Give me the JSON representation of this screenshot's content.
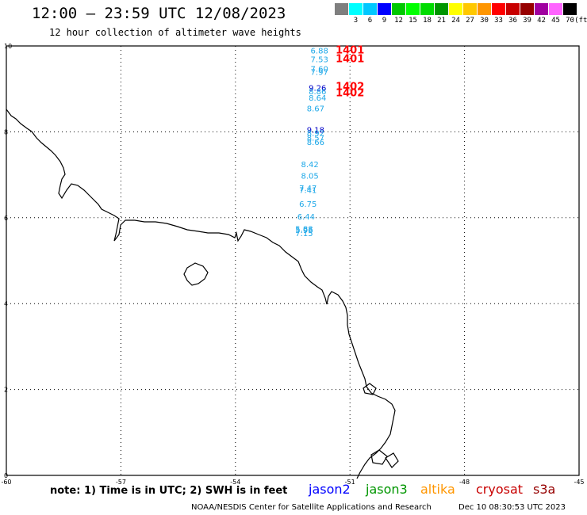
{
  "header": {
    "title": "12:00 — 23:59 UTC 12/08/2023",
    "subtitle": "12 hour collection of altimeter wave heights"
  },
  "color_scale": {
    "unit": "(ft)",
    "swatches": [
      {
        "label": "",
        "color": "#7f7f7f"
      },
      {
        "label": "3",
        "color": "#00ffff"
      },
      {
        "label": "6",
        "color": "#00c8ff"
      },
      {
        "label": "9",
        "color": "#0000ff"
      },
      {
        "label": "12",
        "color": "#00c800"
      },
      {
        "label": "15",
        "color": "#00ff00"
      },
      {
        "label": "18",
        "color": "#00dc00"
      },
      {
        "label": "21",
        "color": "#009600"
      },
      {
        "label": "24",
        "color": "#ffff00"
      },
      {
        "label": "27",
        "color": "#ffc800"
      },
      {
        "label": "30",
        "color": "#ff9600"
      },
      {
        "label": "33",
        "color": "#ff0000"
      },
      {
        "label": "36",
        "color": "#c80000"
      },
      {
        "label": "39",
        "color": "#960000"
      },
      {
        "label": "42",
        "color": "#a000a0"
      },
      {
        "label": "45",
        "color": "#ff64ff"
      },
      {
        "label": "70",
        "color": "#000000"
      }
    ]
  },
  "map": {
    "x_ticks": [
      "-60",
      "-57",
      "-54",
      "-51",
      "-48",
      "-45"
    ],
    "y_ticks": [
      "10",
      "8",
      "6",
      "4",
      "2",
      "0"
    ],
    "x_range": [
      -60,
      -45
    ],
    "y_range": [
      0,
      10
    ],
    "observations": [
      {
        "text": "6.88",
        "lon": -51.8,
        "lat": 9.9,
        "color": "#1ea8e8"
      },
      {
        "text": "7.53",
        "lon": -51.8,
        "lat": 9.7,
        "color": "#1ea8e8"
      },
      {
        "text": "7.60",
        "lon": -51.8,
        "lat": 9.47,
        "color": "#1ea8e8"
      },
      {
        "text": "7.97",
        "lon": -51.8,
        "lat": 9.4,
        "color": "#1ea8e8"
      },
      {
        "text": "9.26",
        "lon": -51.85,
        "lat": 9.03,
        "color": "#0000c8"
      },
      {
        "text": "8.86",
        "lon": -51.85,
        "lat": 8.95,
        "color": "#1ea8e8"
      },
      {
        "text": "8.64",
        "lon": -51.85,
        "lat": 8.8,
        "color": "#1ea8e8"
      },
      {
        "text": "8.67",
        "lon": -51.9,
        "lat": 8.55,
        "color": "#1ea8e8"
      },
      {
        "text": "9.18",
        "lon": -51.9,
        "lat": 8.05,
        "color": "#0000c8"
      },
      {
        "text": "8.92",
        "lon": -51.9,
        "lat": 7.98,
        "color": "#1ea8e8"
      },
      {
        "text": "8.57",
        "lon": -51.9,
        "lat": 7.87,
        "color": "#1ea8e8"
      },
      {
        "text": "8.66",
        "lon": -51.9,
        "lat": 7.77,
        "color": "#1ea8e8"
      },
      {
        "text": "8.42",
        "lon": -52.05,
        "lat": 7.25,
        "color": "#1ea8e8"
      },
      {
        "text": "8.05",
        "lon": -52.05,
        "lat": 6.98,
        "color": "#1ea8e8"
      },
      {
        "text": "7.47",
        "lon": -52.1,
        "lat": 6.7,
        "color": "#1ea8e8"
      },
      {
        "text": "7.41",
        "lon": -52.1,
        "lat": 6.65,
        "color": "#1ea8e8"
      },
      {
        "text": "6.75",
        "lon": -52.1,
        "lat": 6.33,
        "color": "#1ea8e8"
      },
      {
        "text": "6.44",
        "lon": -52.15,
        "lat": 6.03,
        "color": "#1ea8e8"
      },
      {
        "text": "5.88",
        "lon": -52.2,
        "lat": 5.75,
        "color": "#1ea8e8"
      },
      {
        "text": "5.96",
        "lon": -52.2,
        "lat": 5.72,
        "color": "#1ea8e8"
      },
      {
        "text": "7.15",
        "lon": -52.2,
        "lat": 5.65,
        "color": "#1ea8e8"
      },
      {
        "text": "1401",
        "lon": -51.0,
        "lat": 9.9,
        "color": "#ff0000"
      },
      {
        "text": "1401",
        "lon": -51.0,
        "lat": 9.7,
        "color": "#ff0000"
      },
      {
        "text": "1402",
        "lon": -51.0,
        "lat": 9.05,
        "color": "#ff0000"
      },
      {
        "text": "1402",
        "lon": -51.0,
        "lat": 8.9,
        "color": "#ff0000"
      }
    ]
  },
  "footer": {
    "note": "note: 1) Time is in UTC; 2) SWH is in feet",
    "satellites": [
      {
        "name": "jason2",
        "color": "#0000ff"
      },
      {
        "name": "jason3",
        "color": "#009600"
      },
      {
        "name": "altika",
        "color": "#ff9600"
      },
      {
        "name": "cryosat",
        "color": "#c80000"
      },
      {
        "name": "s3a",
        "color": "#960000"
      }
    ],
    "credit": "NOAA/NESDIS Center for Satellite Applications and Research",
    "timestamp": "Dec 10 08:30:53 UTC 2023"
  }
}
